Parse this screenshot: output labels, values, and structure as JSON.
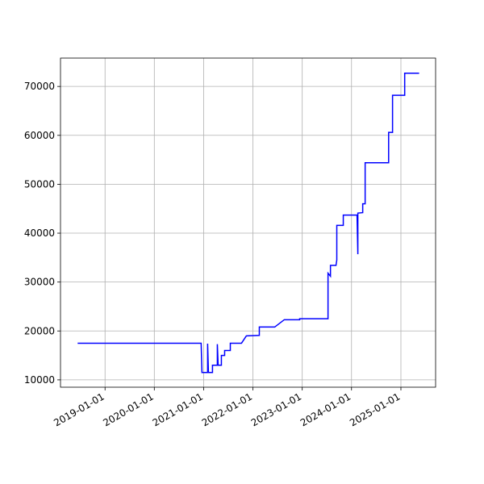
{
  "chart_data": {
    "type": "line",
    "color": "#0000ff",
    "grid": true,
    "x": [
      "2018-06-12",
      "2020-12-13",
      "2020-12-19",
      "2021-01-30",
      "2021-01-30",
      "2021-02-05",
      "2021-03-07",
      "2021-03-07",
      "2021-04-12",
      "2021-04-12",
      "2021-04-18",
      "2021-05-12",
      "2021-05-12",
      "2021-06-05",
      "2021-06-05",
      "2021-07-17",
      "2021-07-17",
      "2021-10-08",
      "2021-11-13",
      "2022-02-17",
      "2022-02-17",
      "2022-06-11",
      "2022-08-21",
      "2022-12-13",
      "2022-12-13",
      "2023-07-11",
      "2023-07-11",
      "2023-07-29",
      "2023-07-29",
      "2023-09-08",
      "2023-09-14",
      "2023-09-14",
      "2023-11-01",
      "2023-11-01",
      "2024-02-11",
      "2024-02-17",
      "2024-02-17",
      "2024-03-24",
      "2024-03-24",
      "2024-04-11",
      "2024-04-11",
      "2024-10-02",
      "2024-10-02",
      "2024-10-31",
      "2024-10-31",
      "2025-01-29",
      "2025-01-29",
      "2025-05-16"
    ],
    "values": [
      17500,
      17500,
      11500,
      11500,
      17400,
      11500,
      11500,
      13000,
      13000,
      17300,
      13000,
      13000,
      15000,
      15000,
      16000,
      16000,
      17500,
      17500,
      19000,
      19100,
      20800,
      20800,
      22300,
      22300,
      22500,
      22500,
      31800,
      31200,
      33400,
      33400,
      34500,
      41600,
      41600,
      43700,
      43700,
      35700,
      44100,
      44200,
      46000,
      46000,
      54400,
      54400,
      60600,
      60600,
      68200,
      68200,
      72700,
      72700
    ],
    "xlim": [
      "2018-02-05",
      "2025-09-15"
    ],
    "xticks": [
      "2019-01-01",
      "2020-01-01",
      "2021-01-01",
      "2022-01-01",
      "2023-01-01",
      "2024-01-01",
      "2025-01-01"
    ],
    "ylim": [
      8500,
      75800
    ],
    "yticks": [
      10000,
      20000,
      30000,
      40000,
      50000,
      60000,
      70000
    ]
  }
}
